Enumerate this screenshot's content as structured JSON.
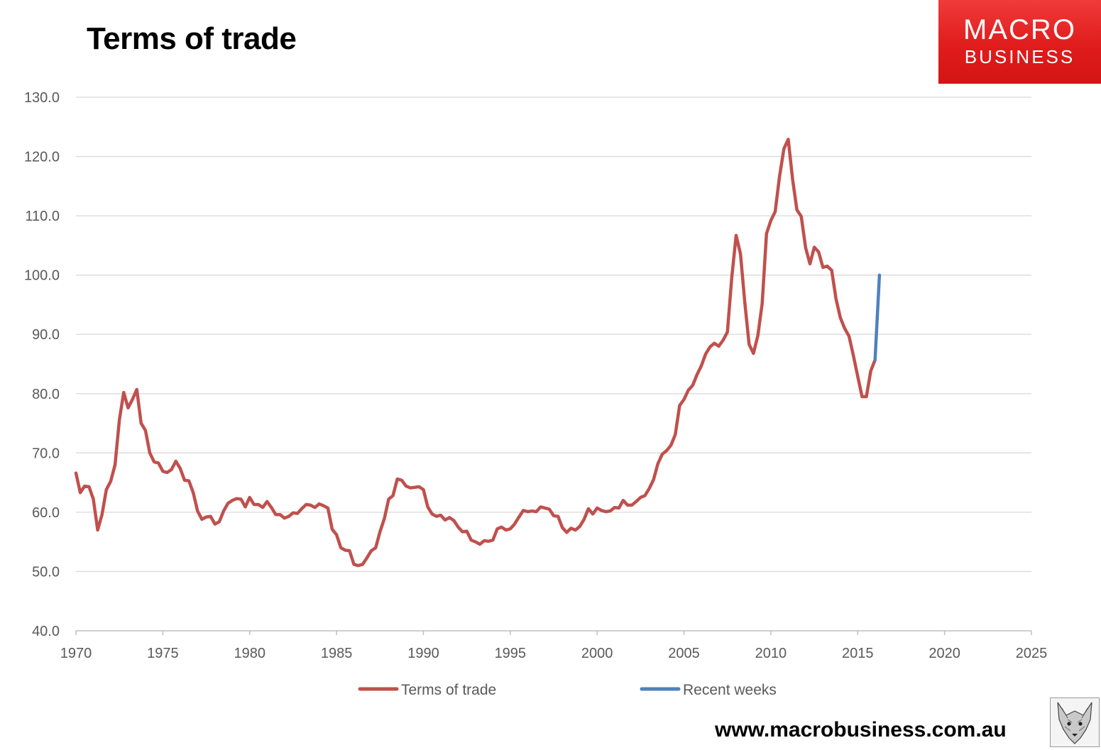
{
  "header": {
    "title": "Terms of trade"
  },
  "logo": {
    "line1": "MACRO",
    "line2": "BUSINESS"
  },
  "footer": {
    "url": "www.macrobusiness.com.au",
    "mascot": "wolf-head-image"
  },
  "colors": {
    "series1": "#c0504d",
    "series2": "#4f81bd",
    "gridline": "#d9d9d9",
    "axis_text": "#595959",
    "logo_red": "#e01c1c"
  },
  "chart_data": {
    "type": "line",
    "title": "Terms of trade",
    "xlabel": "",
    "ylabel": "",
    "xlim": [
      1970,
      2025
    ],
    "ylim": [
      40,
      130
    ],
    "x_ticks": [
      "1970",
      "1975",
      "1980",
      "1985",
      "1990",
      "1995",
      "2000",
      "2005",
      "2010",
      "2015",
      "2020",
      "2025"
    ],
    "y_ticks": [
      "40.0",
      "50.0",
      "60.0",
      "70.0",
      "80.0",
      "90.0",
      "100.0",
      "110.0",
      "120.0",
      "130.0"
    ],
    "grid": "horizontal",
    "legend_position": "bottom",
    "series": [
      {
        "name": "Terms of trade",
        "color": "#c0504d",
        "points": [
          [
            1970.0,
            66.6
          ],
          [
            1970.25,
            63.3
          ],
          [
            1970.5,
            64.4
          ],
          [
            1970.75,
            64.3
          ],
          [
            1971.0,
            62.2
          ],
          [
            1971.25,
            57.0
          ],
          [
            1971.5,
            59.6
          ],
          [
            1971.75,
            63.8
          ],
          [
            1972.0,
            65.2
          ],
          [
            1972.25,
            68.0
          ],
          [
            1972.5,
            75.6
          ],
          [
            1972.75,
            80.2
          ],
          [
            1973.0,
            77.6
          ],
          [
            1973.25,
            79.0
          ],
          [
            1973.5,
            80.7
          ],
          [
            1973.75,
            75.0
          ],
          [
            1974.0,
            73.8
          ],
          [
            1974.25,
            70.0
          ],
          [
            1974.5,
            68.5
          ],
          [
            1974.75,
            68.3
          ],
          [
            1975.0,
            66.9
          ],
          [
            1975.25,
            66.7
          ],
          [
            1975.5,
            67.2
          ],
          [
            1975.75,
            68.6
          ],
          [
            1976.0,
            67.4
          ],
          [
            1976.25,
            65.4
          ],
          [
            1976.5,
            65.3
          ],
          [
            1976.75,
            63.3
          ],
          [
            1977.0,
            60.2
          ],
          [
            1977.25,
            58.8
          ],
          [
            1977.5,
            59.2
          ],
          [
            1977.75,
            59.3
          ],
          [
            1978.0,
            58.0
          ],
          [
            1978.25,
            58.4
          ],
          [
            1978.5,
            60.2
          ],
          [
            1978.75,
            61.5
          ],
          [
            1979.0,
            62.0
          ],
          [
            1979.25,
            62.3
          ],
          [
            1979.5,
            62.2
          ],
          [
            1979.75,
            60.9
          ],
          [
            1980.0,
            62.5
          ],
          [
            1980.25,
            61.3
          ],
          [
            1980.5,
            61.3
          ],
          [
            1980.75,
            60.8
          ],
          [
            1981.0,
            61.8
          ],
          [
            1981.25,
            60.8
          ],
          [
            1981.5,
            59.6
          ],
          [
            1981.75,
            59.6
          ],
          [
            1982.0,
            59.0
          ],
          [
            1982.25,
            59.3
          ],
          [
            1982.5,
            59.9
          ],
          [
            1982.75,
            59.8
          ],
          [
            1983.0,
            60.6
          ],
          [
            1983.25,
            61.3
          ],
          [
            1983.5,
            61.2
          ],
          [
            1983.75,
            60.8
          ],
          [
            1984.0,
            61.4
          ],
          [
            1984.25,
            61.1
          ],
          [
            1984.5,
            60.7
          ],
          [
            1984.75,
            57.1
          ],
          [
            1985.0,
            56.2
          ],
          [
            1985.25,
            54.0
          ],
          [
            1985.5,
            53.6
          ],
          [
            1985.75,
            53.5
          ],
          [
            1986.0,
            51.2
          ],
          [
            1986.25,
            51.0
          ],
          [
            1986.5,
            51.2
          ],
          [
            1986.75,
            52.3
          ],
          [
            1987.0,
            53.5
          ],
          [
            1987.25,
            54.0
          ],
          [
            1987.5,
            56.7
          ],
          [
            1987.75,
            58.9
          ],
          [
            1988.0,
            62.2
          ],
          [
            1988.25,
            62.8
          ],
          [
            1988.5,
            65.6
          ],
          [
            1988.75,
            65.4
          ],
          [
            1989.0,
            64.4
          ],
          [
            1989.25,
            64.1
          ],
          [
            1989.5,
            64.2
          ],
          [
            1989.75,
            64.3
          ],
          [
            1990.0,
            63.8
          ],
          [
            1990.25,
            60.9
          ],
          [
            1990.5,
            59.7
          ],
          [
            1990.75,
            59.3
          ],
          [
            1991.0,
            59.5
          ],
          [
            1991.25,
            58.7
          ],
          [
            1991.5,
            59.1
          ],
          [
            1991.75,
            58.6
          ],
          [
            1992.0,
            57.5
          ],
          [
            1992.25,
            56.7
          ],
          [
            1992.5,
            56.8
          ],
          [
            1992.75,
            55.3
          ],
          [
            1993.0,
            55.0
          ],
          [
            1993.25,
            54.6
          ],
          [
            1993.5,
            55.2
          ],
          [
            1993.75,
            55.1
          ],
          [
            1994.0,
            55.3
          ],
          [
            1994.25,
            57.2
          ],
          [
            1994.5,
            57.5
          ],
          [
            1994.75,
            57.0
          ],
          [
            1995.0,
            57.2
          ],
          [
            1995.25,
            58.0
          ],
          [
            1995.5,
            59.2
          ],
          [
            1995.75,
            60.3
          ],
          [
            1996.0,
            60.1
          ],
          [
            1996.25,
            60.2
          ],
          [
            1996.5,
            60.1
          ],
          [
            1996.75,
            60.9
          ],
          [
            1997.0,
            60.7
          ],
          [
            1997.25,
            60.5
          ],
          [
            1997.5,
            59.4
          ],
          [
            1997.75,
            59.3
          ],
          [
            1998.0,
            57.4
          ],
          [
            1998.25,
            56.6
          ],
          [
            1998.5,
            57.3
          ],
          [
            1998.75,
            57.0
          ],
          [
            1999.0,
            57.6
          ],
          [
            1999.25,
            58.8
          ],
          [
            1999.5,
            60.6
          ],
          [
            1999.75,
            59.7
          ],
          [
            2000.0,
            60.7
          ],
          [
            2000.25,
            60.3
          ],
          [
            2000.5,
            60.1
          ],
          [
            2000.75,
            60.2
          ],
          [
            2001.0,
            60.8
          ],
          [
            2001.25,
            60.7
          ],
          [
            2001.5,
            62.0
          ],
          [
            2001.75,
            61.2
          ],
          [
            2002.0,
            61.2
          ],
          [
            2002.25,
            61.8
          ],
          [
            2002.5,
            62.5
          ],
          [
            2002.75,
            62.8
          ],
          [
            2003.0,
            64.0
          ],
          [
            2003.25,
            65.5
          ],
          [
            2003.5,
            68.2
          ],
          [
            2003.75,
            69.8
          ],
          [
            2004.0,
            70.4
          ],
          [
            2004.25,
            71.3
          ],
          [
            2004.5,
            73.1
          ],
          [
            2004.75,
            78.0
          ],
          [
            2005.0,
            79.0
          ],
          [
            2005.25,
            80.6
          ],
          [
            2005.5,
            81.4
          ],
          [
            2005.75,
            83.2
          ],
          [
            2006.0,
            84.7
          ],
          [
            2006.25,
            86.7
          ],
          [
            2006.5,
            87.9
          ],
          [
            2006.75,
            88.5
          ],
          [
            2007.0,
            88.0
          ],
          [
            2007.25,
            89.0
          ],
          [
            2007.5,
            90.4
          ],
          [
            2007.75,
            99.5
          ],
          [
            2008.0,
            106.7
          ],
          [
            2008.25,
            103.6
          ],
          [
            2008.5,
            95.4
          ],
          [
            2008.75,
            88.3
          ],
          [
            2009.0,
            86.8
          ],
          [
            2009.25,
            89.8
          ],
          [
            2009.5,
            95.2
          ],
          [
            2009.75,
            107.0
          ],
          [
            2010.0,
            109.2
          ],
          [
            2010.25,
            110.7
          ],
          [
            2010.5,
            116.6
          ],
          [
            2010.75,
            121.3
          ],
          [
            2011.0,
            122.9
          ],
          [
            2011.25,
            116.2
          ],
          [
            2011.5,
            111.0
          ],
          [
            2011.75,
            109.9
          ],
          [
            2012.0,
            104.6
          ],
          [
            2012.25,
            101.9
          ],
          [
            2012.5,
            104.7
          ],
          [
            2012.75,
            103.9
          ],
          [
            2013.0,
            101.3
          ],
          [
            2013.25,
            101.5
          ],
          [
            2013.5,
            100.8
          ],
          [
            2013.75,
            96.0
          ],
          [
            2014.0,
            92.8
          ],
          [
            2014.25,
            91.0
          ],
          [
            2014.5,
            89.7
          ],
          [
            2014.75,
            86.4
          ],
          [
            2015.0,
            82.9
          ],
          [
            2015.25,
            79.5
          ],
          [
            2015.5,
            79.5
          ],
          [
            2015.75,
            83.8
          ],
          [
            2016.0,
            85.7
          ]
        ]
      },
      {
        "name": "Recent weeks",
        "color": "#4f81bd",
        "points": [
          [
            2016.0,
            85.7
          ],
          [
            2016.25,
            100.0
          ]
        ]
      }
    ]
  }
}
